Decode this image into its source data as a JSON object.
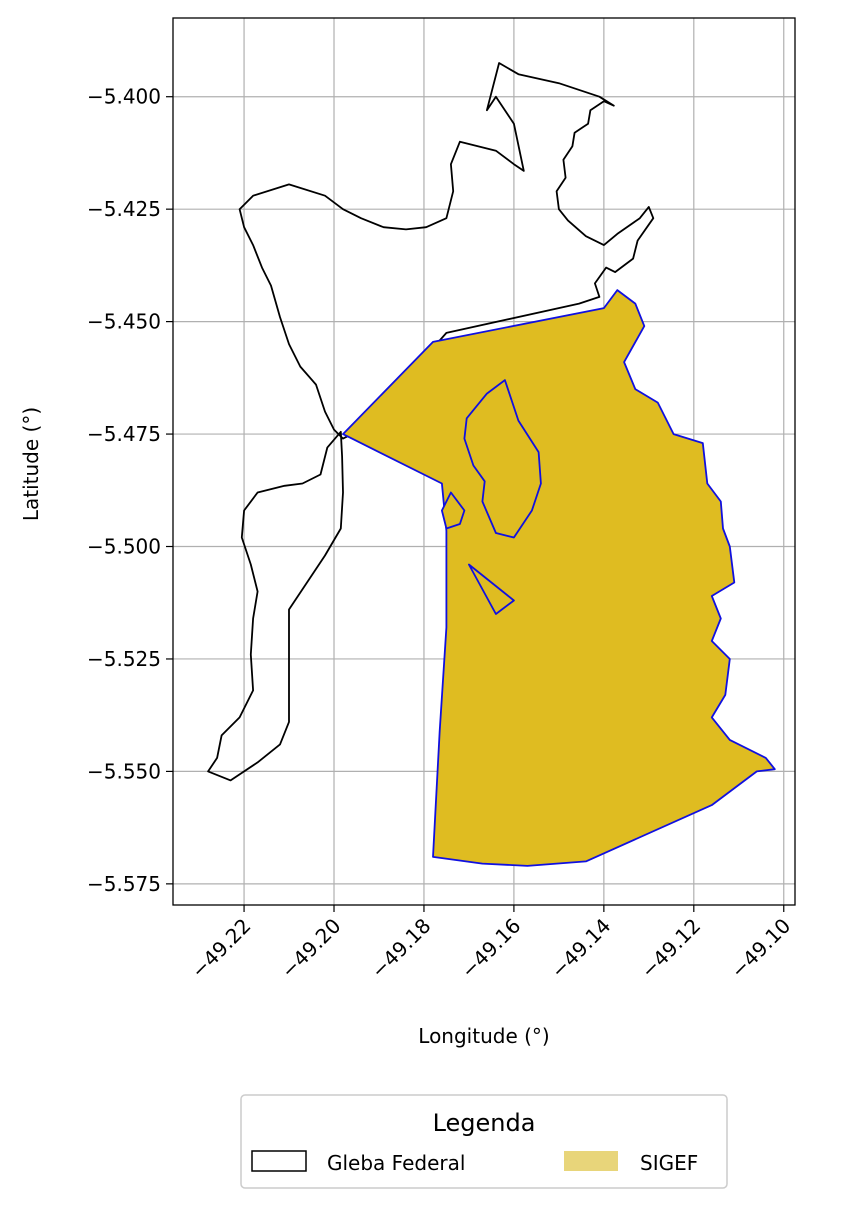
{
  "chart_data": {
    "type": "map",
    "title": "",
    "xlabel": "Longitude (°)",
    "ylabel": "Latitude (°)",
    "xlim": [
      -49.2358,
      -49.0975
    ],
    "ylim": [
      -5.5797,
      -5.3825
    ],
    "x_ticks": [
      -49.22,
      -49.2,
      -49.18,
      -49.16,
      -49.14,
      -49.12,
      -49.1
    ],
    "x_tick_labels": [
      "−49.22",
      "−49.20",
      "−49.18",
      "−49.16",
      "−49.14",
      "−49.12",
      "−49.10"
    ],
    "y_ticks": [
      -5.4,
      -5.425,
      -5.45,
      -5.475,
      -5.5,
      -5.525,
      -5.55,
      -5.575
    ],
    "y_tick_labels": [
      "−5.400",
      "−5.425",
      "−5.450",
      "−5.475",
      "−5.500",
      "−5.525",
      "−5.550",
      "−5.575"
    ],
    "grid": true,
    "legend": {
      "title": "Legenda",
      "placement": "bottom-center",
      "entries": [
        {
          "label": "Gleba Federal",
          "style": "outline",
          "edge": "#000000",
          "fill": "none"
        },
        {
          "label": "SIGEF",
          "style": "fill",
          "fill": "#e8d57a",
          "edge": "none"
        }
      ]
    },
    "layers": [
      {
        "name": "Gleba Federal",
        "edge": "#000000",
        "fill": "none",
        "polygons": [
          [
            [
              -49.1633,
              -5.3925
            ],
            [
              -49.159,
              -5.395
            ],
            [
              -49.15,
              -5.397
            ],
            [
              -49.141,
              -5.4
            ],
            [
              -49.1378,
              -5.402
            ],
            [
              -49.14,
              -5.401
            ],
            [
              -49.143,
              -5.403
            ],
            [
              -49.1435,
              -5.406
            ],
            [
              -49.1465,
              -5.408
            ],
            [
              -49.147,
              -5.411
            ],
            [
              -49.149,
              -5.414
            ],
            [
              -49.1485,
              -5.418
            ],
            [
              -49.1505,
              -5.421
            ],
            [
              -49.15,
              -5.425
            ],
            [
              -49.148,
              -5.4275
            ],
            [
              -49.144,
              -5.431
            ],
            [
              -49.14,
              -5.433
            ],
            [
              -49.137,
              -5.4305
            ],
            [
              -49.132,
              -5.427
            ],
            [
              -49.13,
              -5.4245
            ],
            [
              -49.129,
              -5.427
            ],
            [
              -49.1325,
              -5.432
            ],
            [
              -49.1335,
              -5.436
            ],
            [
              -49.1375,
              -5.439
            ],
            [
              -49.1395,
              -5.438
            ],
            [
              -49.142,
              -5.4415
            ],
            [
              -49.141,
              -5.4445
            ],
            [
              -49.1455,
              -5.446
            ],
            [
              -49.175,
              -5.4525
            ],
            [
              -49.179,
              -5.457
            ],
            [
              -49.196,
              -5.475
            ],
            [
              -49.198,
              -5.476
            ],
            [
              -49.2,
              -5.474
            ],
            [
              -49.202,
              -5.47
            ],
            [
              -49.204,
              -5.464
            ],
            [
              -49.2075,
              -5.46
            ],
            [
              -49.21,
              -5.455
            ],
            [
              -49.212,
              -5.449
            ],
            [
              -49.214,
              -5.442
            ],
            [
              -49.216,
              -5.438
            ],
            [
              -49.218,
              -5.433
            ],
            [
              -49.22,
              -5.429
            ],
            [
              -49.221,
              -5.425
            ],
            [
              -49.218,
              -5.422
            ],
            [
              -49.21,
              -5.4195
            ],
            [
              -49.202,
              -5.422
            ],
            [
              -49.198,
              -5.425
            ],
            [
              -49.194,
              -5.427
            ],
            [
              -49.189,
              -5.429
            ],
            [
              -49.184,
              -5.4295
            ],
            [
              -49.1795,
              -5.429
            ],
            [
              -49.175,
              -5.427
            ],
            [
              -49.1735,
              -5.421
            ],
            [
              -49.174,
              -5.415
            ],
            [
              -49.172,
              -5.41
            ],
            [
              -49.164,
              -5.412
            ],
            [
              -49.16,
              -5.415
            ],
            [
              -49.1578,
              -5.4165
            ],
            [
              -49.16,
              -5.406
            ],
            [
              -49.164,
              -5.4
            ],
            [
              -49.166,
              -5.403
            ],
            [
              -49.1633,
              -5.3925
            ]
          ],
          [
            [
              -49.1985,
              -5.4745
            ],
            [
              -49.2015,
              -5.478
            ],
            [
              -49.203,
              -5.484
            ],
            [
              -49.207,
              -5.486
            ],
            [
              -49.211,
              -5.4865
            ],
            [
              -49.217,
              -5.488
            ],
            [
              -49.22,
              -5.492
            ],
            [
              -49.2205,
              -5.498
            ],
            [
              -49.2185,
              -5.504
            ],
            [
              -49.217,
              -5.51
            ],
            [
              -49.218,
              -5.516
            ],
            [
              -49.2185,
              -5.524
            ],
            [
              -49.218,
              -5.532
            ],
            [
              -49.221,
              -5.538
            ],
            [
              -49.225,
              -5.542
            ],
            [
              -49.226,
              -5.547
            ],
            [
              -49.228,
              -5.55
            ],
            [
              -49.223,
              -5.552
            ],
            [
              -49.217,
              -5.548
            ],
            [
              -49.212,
              -5.544
            ],
            [
              -49.21,
              -5.539
            ],
            [
              -49.21,
              -5.53
            ],
            [
              -49.21,
              -5.519
            ],
            [
              -49.21,
              -5.514
            ],
            [
              -49.206,
              -5.508
            ],
            [
              -49.202,
              -5.502
            ],
            [
              -49.1985,
              -5.496
            ],
            [
              -49.198,
              -5.488
            ],
            [
              -49.1982,
              -5.48
            ],
            [
              -49.1985,
              -5.4745
            ]
          ]
        ]
      },
      {
        "name": "SIGEF",
        "edge": "#1010e0",
        "fill": "#dfbc21",
        "polygons": [
          [
            [
              -49.198,
              -5.475
            ],
            [
              -49.178,
              -5.4545
            ],
            [
              -49.14,
              -5.447
            ],
            [
              -49.137,
              -5.443
            ],
            [
              -49.133,
              -5.446
            ],
            [
              -49.131,
              -5.451
            ],
            [
              -49.1355,
              -5.459
            ],
            [
              -49.133,
              -5.465
            ],
            [
              -49.128,
              -5.468
            ],
            [
              -49.1245,
              -5.475
            ],
            [
              -49.118,
              -5.477
            ],
            [
              -49.117,
              -5.486
            ],
            [
              -49.114,
              -5.49
            ],
            [
              -49.1135,
              -5.496
            ],
            [
              -49.112,
              -5.5
            ],
            [
              -49.111,
              -5.508
            ],
            [
              -49.116,
              -5.511
            ],
            [
              -49.114,
              -5.516
            ],
            [
              -49.116,
              -5.521
            ],
            [
              -49.112,
              -5.525
            ],
            [
              -49.113,
              -5.533
            ],
            [
              -49.116,
              -5.538
            ],
            [
              -49.112,
              -5.543
            ],
            [
              -49.104,
              -5.547
            ],
            [
              -49.102,
              -5.5495
            ],
            [
              -49.106,
              -5.55
            ],
            [
              -49.116,
              -5.5575
            ],
            [
              -49.144,
              -5.57
            ],
            [
              -49.157,
              -5.571
            ],
            [
              -49.167,
              -5.5705
            ],
            [
              -49.178,
              -5.569
            ],
            [
              -49.1765,
              -5.541
            ],
            [
              -49.175,
              -5.518
            ],
            [
              -49.175,
              -5.4965
            ],
            [
              -49.176,
              -5.486
            ],
            [
              -49.198,
              -5.475
            ]
          ],
          [
            [
              -49.162,
              -5.463
            ],
            [
              -49.166,
              -5.466
            ],
            [
              -49.1705,
              -5.4715
            ],
            [
              -49.171,
              -5.476
            ],
            [
              -49.169,
              -5.482
            ],
            [
              -49.1665,
              -5.4855
            ],
            [
              -49.167,
              -5.49
            ],
            [
              -49.164,
              -5.497
            ],
            [
              -49.16,
              -5.498
            ],
            [
              -49.156,
              -5.492
            ],
            [
              -49.154,
              -5.486
            ],
            [
              -49.1545,
              -5.479
            ],
            [
              -49.159,
              -5.472
            ],
            [
              -49.162,
              -5.463
            ]
          ],
          [
            [
              -49.174,
              -5.488
            ],
            [
              -49.171,
              -5.492
            ],
            [
              -49.172,
              -5.495
            ],
            [
              -49.175,
              -5.496
            ],
            [
              -49.176,
              -5.492
            ],
            [
              -49.174,
              -5.488
            ]
          ],
          [
            [
              -49.17,
              -5.504
            ],
            [
              -49.16,
              -5.512
            ],
            [
              -49.164,
              -5.515
            ],
            [
              -49.17,
              -5.504
            ]
          ]
        ]
      }
    ]
  }
}
